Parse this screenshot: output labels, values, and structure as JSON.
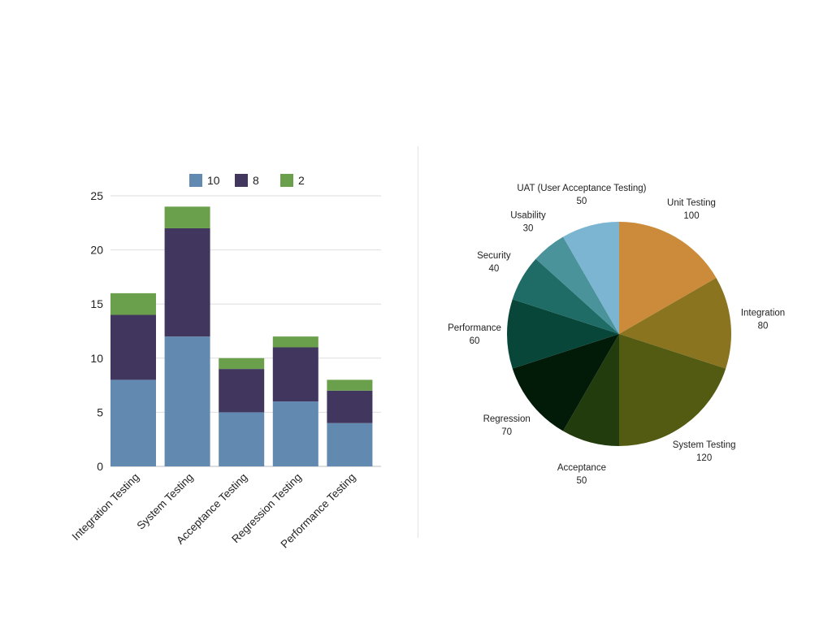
{
  "chart_data": [
    {
      "type": "bar",
      "stacked": true,
      "categories": [
        "Integration Testing",
        "System Testing",
        "Acceptance Testing",
        "Regression Testing",
        "Performance Testing"
      ],
      "series": [
        {
          "name": "10",
          "color": "#628ab0",
          "values": [
            8,
            12,
            5,
            6,
            4
          ]
        },
        {
          "name": "8",
          "color": "#41365e",
          "values": [
            6,
            10,
            4,
            5,
            3
          ]
        },
        {
          "name": "2",
          "color": "#6aa04b",
          "values": [
            2,
            2,
            1,
            1,
            1
          ]
        }
      ],
      "yticks": [
        0,
        5,
        10,
        15,
        20,
        25
      ],
      "ylim": [
        0,
        25
      ],
      "grid": true,
      "legend": "top"
    },
    {
      "type": "pie",
      "slices": [
        {
          "label": "Unit Testing",
          "value": 100,
          "color": "#cc8b3a"
        },
        {
          "label": "Integration",
          "value": 80,
          "color": "#8b7420"
        },
        {
          "label": "System Testing",
          "value": 120,
          "color": "#535a12"
        },
        {
          "label": "Acceptance",
          "value": 50,
          "color": "#233c0d"
        },
        {
          "label": "Regression",
          "value": 70,
          "color": "#021b08"
        },
        {
          "label": "Performance",
          "value": 60,
          "color": "#08463a"
        },
        {
          "label": "Security",
          "value": 40,
          "color": "#1f6b66"
        },
        {
          "label": "Usability",
          "value": 30,
          "color": "#4a939b"
        },
        {
          "label": "UAT (User Acceptance Testing)",
          "value": 50,
          "color": "#7bb5d2"
        }
      ]
    }
  ]
}
